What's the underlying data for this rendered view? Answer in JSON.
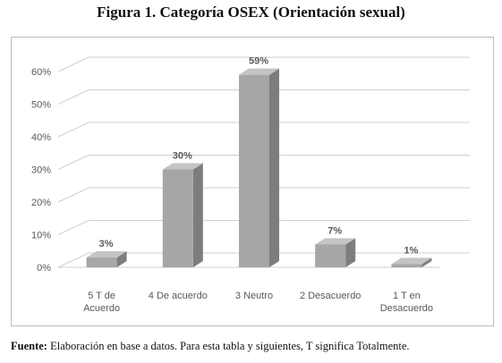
{
  "figure": {
    "title": "Figura 1. Categoría OSEX (Orientación sexual)",
    "source_label": "Fuente:",
    "source_text": " Elaboración en base a datos. Para esta tabla y siguientes, T significa Totalmente."
  },
  "chart_data": {
    "type": "bar",
    "categories": [
      [
        "5 T de",
        "Acuerdo"
      ],
      [
        "4 De acuerdo"
      ],
      [
        "3 Neutro"
      ],
      [
        "2 Desacuerdo"
      ],
      [
        "1 T en",
        "Desacuerdo"
      ]
    ],
    "values": [
      3,
      30,
      59,
      7,
      1
    ],
    "data_labels": [
      "3%",
      "30%",
      "59%",
      "7%",
      "1%"
    ],
    "yticks": [
      "0%",
      "10%",
      "20%",
      "30%",
      "40%",
      "50%",
      "60%"
    ],
    "ylim": [
      0,
      60
    ],
    "grid": true,
    "style": "3d-column",
    "colors": {
      "bar_front": "#a6a6a6",
      "bar_side": "#7d7d7d",
      "bar_top": "#c4c4c4",
      "grid": "#cfcfcf",
      "text": "#595959"
    }
  }
}
